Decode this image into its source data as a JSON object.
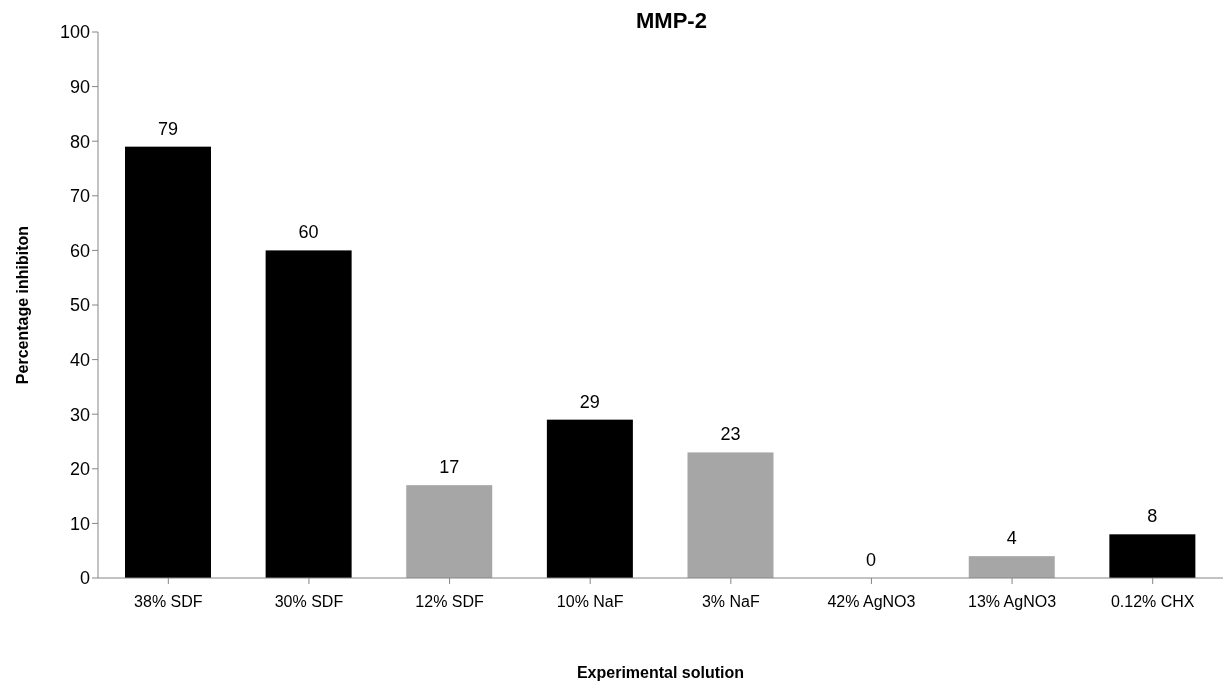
{
  "chart_data": {
    "type": "bar",
    "title": "MMP-2",
    "xlabel": "Experimental solution",
    "ylabel": "Percentage inhibiton",
    "categories": [
      "38% SDF",
      "30% SDF",
      "12% SDF",
      "10% NaF",
      "3% NaF",
      "42% AgNO3",
      "13% AgNO3",
      "0.12% CHX"
    ],
    "values": [
      79,
      60,
      17,
      29,
      23,
      0,
      4,
      8
    ],
    "colors": [
      "#000000",
      "#000000",
      "#a6a6a6",
      "#000000",
      "#a6a6a6",
      "#a6a6a6",
      "#a6a6a6",
      "#000000"
    ],
    "ylim": [
      0,
      100
    ],
    "yticks": [
      0,
      10,
      20,
      30,
      40,
      50,
      60,
      70,
      80,
      90,
      100
    ],
    "grid": false,
    "legend": false,
    "data_labels": true
  }
}
